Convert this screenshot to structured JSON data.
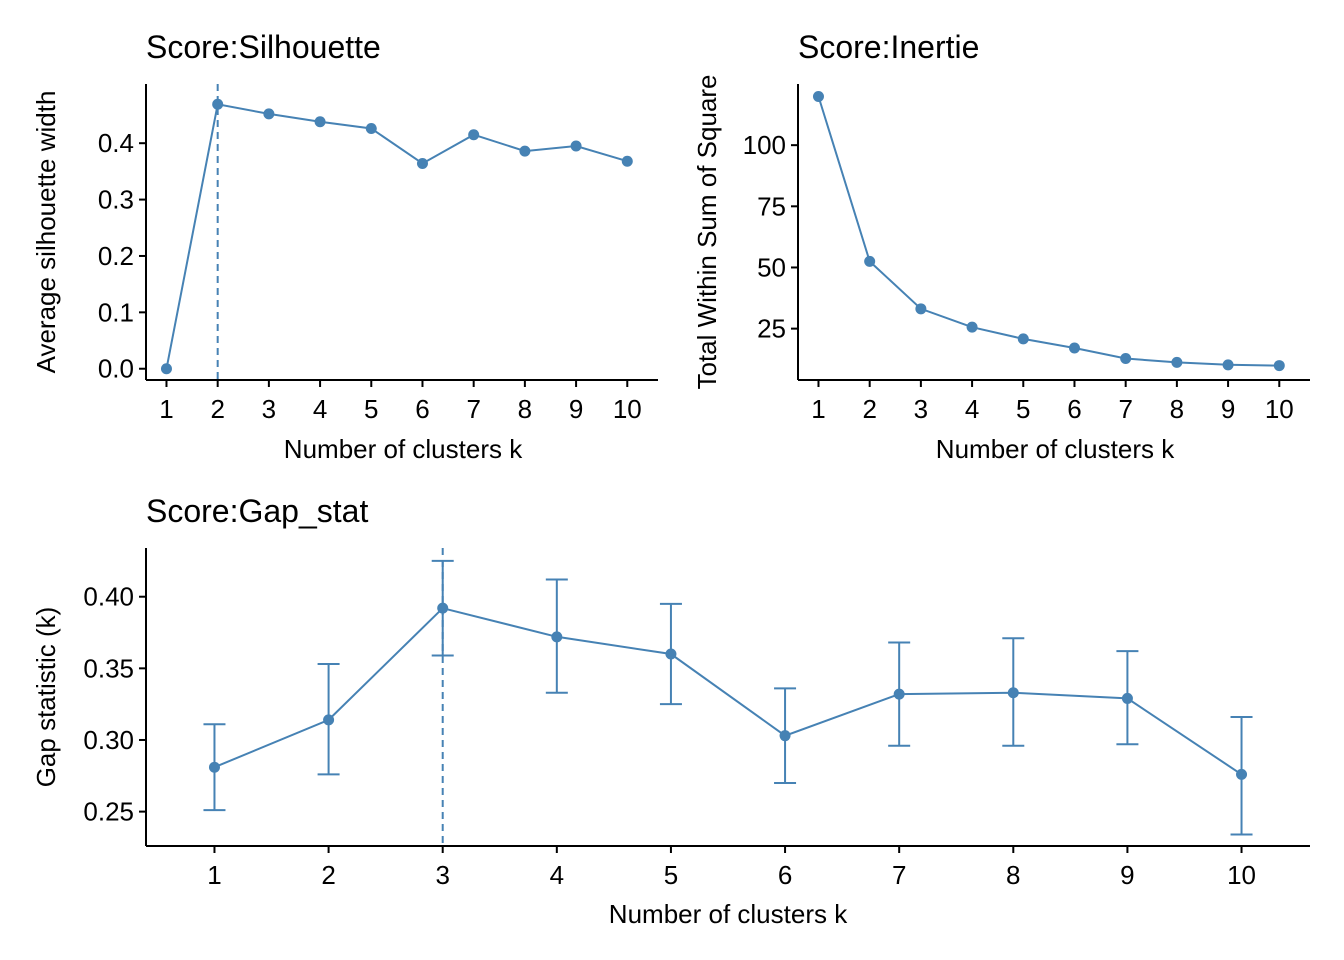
{
  "colors": {
    "series": "#4682b4",
    "axis": "#000000"
  },
  "chart_data": [
    {
      "id": "silhouette",
      "type": "line",
      "title": "Score:Silhouette",
      "xlabel": "Number of clusters k",
      "ylabel": "Average silhouette width",
      "x": [
        1,
        2,
        3,
        4,
        5,
        6,
        7,
        8,
        9,
        10
      ],
      "y": [
        0.0,
        0.469,
        0.452,
        0.438,
        0.426,
        0.364,
        0.415,
        0.386,
        0.395,
        0.368
      ],
      "xlim": [
        0.6,
        10.6
      ],
      "ylim": [
        -0.02,
        0.505
      ],
      "yticks": [
        0.0,
        0.1,
        0.2,
        0.3,
        0.4
      ],
      "ytick_labels": [
        "0.0",
        "0.1",
        "0.2",
        "0.3",
        "0.4"
      ],
      "xtick_labels": [
        "1",
        "2",
        "3",
        "4",
        "5",
        "6",
        "7",
        "8",
        "9",
        "10"
      ],
      "optimal_k": 2,
      "grid": false,
      "legend": "none"
    },
    {
      "id": "inertie",
      "type": "line",
      "title": "Score:Inertie",
      "xlabel": "Number of clusters k",
      "ylabel": "Total Within Sum of Square",
      "x": [
        1,
        2,
        3,
        4,
        5,
        6,
        7,
        8,
        9,
        10
      ],
      "y": [
        119.9,
        52.5,
        33.1,
        25.6,
        20.8,
        17.1,
        12.8,
        11.2,
        10.2,
        9.9
      ],
      "xlim": [
        0.6,
        10.6
      ],
      "ylim": [
        4.0,
        125.0
      ],
      "yticks": [
        25,
        50,
        75,
        100
      ],
      "ytick_labels": [
        "25",
        "50",
        "75",
        "100"
      ],
      "xtick_labels": [
        "1",
        "2",
        "3",
        "4",
        "5",
        "6",
        "7",
        "8",
        "9",
        "10"
      ],
      "grid": false,
      "legend": "none"
    },
    {
      "id": "gap_stat",
      "type": "line",
      "title": "Score:Gap_stat",
      "xlabel": "Number of clusters k",
      "ylabel": "Gap statistic (k)",
      "x": [
        1,
        2,
        3,
        4,
        5,
        6,
        7,
        8,
        9,
        10
      ],
      "y": [
        0.281,
        0.314,
        0.392,
        0.372,
        0.36,
        0.303,
        0.332,
        0.333,
        0.329,
        0.276
      ],
      "err_low": [
        0.251,
        0.276,
        0.359,
        0.333,
        0.325,
        0.27,
        0.296,
        0.296,
        0.297,
        0.234
      ],
      "err_high": [
        0.311,
        0.353,
        0.425,
        0.412,
        0.395,
        0.336,
        0.368,
        0.371,
        0.362,
        0.316
      ],
      "xlim": [
        0.4,
        10.6
      ],
      "ylim": [
        0.226,
        0.434
      ],
      "yticks": [
        0.25,
        0.3,
        0.35,
        0.4
      ],
      "ytick_labels": [
        "0.25",
        "0.30",
        "0.35",
        "0.40"
      ],
      "xtick_labels": [
        "1",
        "2",
        "3",
        "4",
        "5",
        "6",
        "7",
        "8",
        "9",
        "10"
      ],
      "optimal_k": 3,
      "grid": false,
      "legend": "none"
    }
  ]
}
